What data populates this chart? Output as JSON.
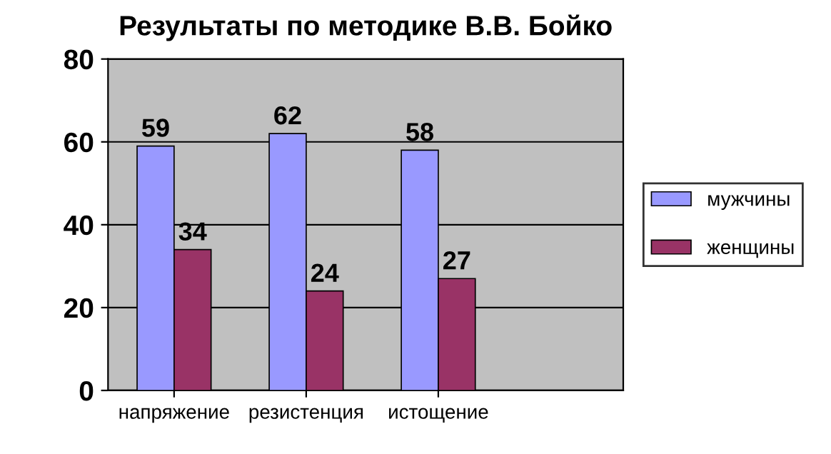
{
  "chart_data": {
    "type": "bar",
    "title": "Результаты по методике В.В. Бойко",
    "categories": [
      "напряжение",
      "резистенция",
      "истощение"
    ],
    "series": [
      {
        "name": "мужчины",
        "color": "#9999ff",
        "values": [
          59,
          62,
          58
        ]
      },
      {
        "name": "женщины",
        "color": "#993366",
        "values": [
          34,
          24,
          27
        ]
      }
    ],
    "ylim": [
      0,
      80
    ],
    "yticks": [
      0,
      20,
      40,
      60,
      80
    ],
    "grid": "y",
    "legend": "right",
    "data_labels": true
  }
}
